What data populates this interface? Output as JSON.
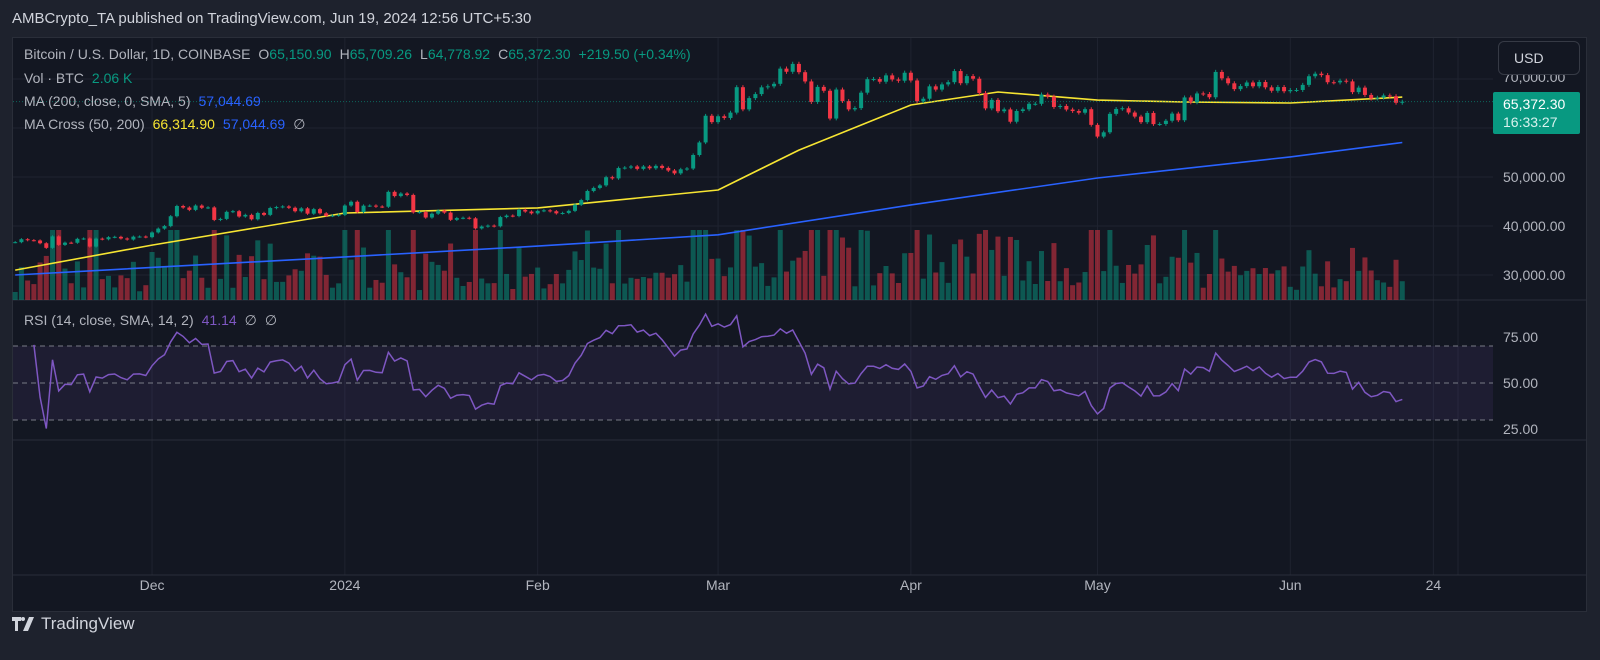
{
  "header": {
    "published": "AMBCrypto_TA published on TradingView.com, Jun 19, 2024 12:56 UTC+5:30"
  },
  "legend": {
    "symbol": "Bitcoin / U.S. Dollar, 1D, COINBASE",
    "o_label": "O",
    "o": "65,150.90",
    "h_label": "H",
    "h": "65,709.26",
    "l_label": "L",
    "l": "64,778.92",
    "c_label": "C",
    "c": "65,372.30",
    "change": "+219.50 (+0.34%)",
    "vol_label": "Vol · BTC",
    "vol": "2.06 K",
    "ma_label": "MA (200, close, 0, SMA, 5)",
    "ma": "57,044.69",
    "cross_label": "MA Cross (50, 200)",
    "cross_fast": "66,314.90",
    "cross_slow": "57,044.69",
    "cross_extra": "∅",
    "rsi_label": "RSI (14, close, SMA, 14, 2)",
    "rsi": "41.14",
    "rsi_extra1": "∅",
    "rsi_extra2": "∅"
  },
  "price_axis": {
    "currency_button": "USD",
    "ticks": [
      "70,000.00",
      "50,000.00",
      "40,000.00",
      "30,000.00"
    ],
    "last_price": "65,372.30",
    "countdown": "16:33:27"
  },
  "rsi_axis": {
    "ticks": [
      "75.00",
      "50.00",
      "25.00"
    ]
  },
  "time_axis": {
    "ticks": [
      "Dec",
      "2024",
      "Feb",
      "Mar",
      "Apr",
      "May",
      "Jun",
      "24"
    ]
  },
  "branding": {
    "logo_text": "TradingView"
  },
  "colors": {
    "up": "#089981",
    "down": "#f23645",
    "ma200": "#2962ff",
    "ma50": "#f7e532",
    "rsi": "#7e57c2",
    "background": "#131722"
  },
  "chart_data": {
    "type": "candlestick",
    "start_date": "2023-11-09",
    "interval": "1D",
    "ylim": [
      23000,
      78000
    ],
    "yticks": [
      30000,
      40000,
      50000,
      70000
    ],
    "close": [
      36700,
      37300,
      37100,
      37050,
      36480,
      35540,
      37880,
      36150,
      36600,
      36580,
      37380,
      37450,
      35800,
      37420,
      37290,
      37720,
      37790,
      37450,
      37240,
      37830,
      37850,
      37720,
      38690,
      39470,
      39980,
      41990,
      44080,
      43770,
      43290,
      44170,
      43720,
      43790,
      41240,
      41450,
      42890,
      43020,
      41940,
      42270,
      41370,
      42660,
      42270,
      43670,
      43860,
      43990,
      43720,
      43010,
      43600,
      42520,
      43440,
      42590,
      42070,
      42140,
      42280,
      44180,
      44950,
      42850,
      44150,
      44160,
      43970,
      43930,
      46970,
      46110,
      46630,
      46340,
      42780,
      42840,
      41730,
      42510,
      43150,
      42740,
      41260,
      41620,
      41680,
      41560,
      39510,
      39890,
      40080,
      39940,
      41820,
      42120,
      42030,
      43300,
      42950,
      42580,
      43080,
      43190,
      43010,
      42580,
      42660,
      43090,
      44340,
      45290,
      47150,
      47770,
      48290,
      49960,
      49720,
      51830,
      51920,
      52150,
      51660,
      52140,
      51780,
      52270,
      51850,
      51320,
      50740,
      51570,
      51730,
      54490,
      57050,
      62500,
      61200,
      62400,
      62050,
      63140,
      68330,
      63800,
      66100,
      66920,
      68300,
      68500,
      69020,
      72120,
      71480,
      73080,
      71390,
      69500,
      65300,
      68390,
      67600,
      61930,
      67850,
      65500,
      63800,
      64060,
      67210,
      69960,
      69990,
      69450,
      70740,
      69900,
      69650,
      71280,
      69700,
      65450,
      65980,
      68500,
      67840,
      68900,
      69350,
      71620,
      69140,
      70590,
      70060,
      67150,
      64000,
      65740,
      63420,
      63790,
      61280,
      63470,
      63810,
      64940,
      64940,
      66840,
      66410,
      64280,
      64500,
      63770,
      63460,
      63120,
      63840,
      60640,
      58250,
      59120,
      62890,
      63890,
      64030,
      63160,
      62330,
      61190,
      63070,
      60790,
      60820,
      61480,
      62940,
      61580,
      66240,
      65230,
      67050,
      66940,
      66270,
      71440,
      70140,
      69120,
      67930,
      68550,
      69290,
      68510,
      69390,
      68300,
      67600,
      68360,
      67500,
      67750,
      67760,
      68800,
      70560,
      71080,
      70790,
      69340,
      69310,
      69650,
      69510,
      67320,
      68240,
      66750,
      66010,
      66190,
      66640,
      66490,
      65150,
      65372.3
    ],
    "ma50": [
      [
        "2023-11-09",
        31000
      ],
      [
        "2023-12-01",
        36100
      ],
      [
        "2024-01-01",
        42650
      ],
      [
        "2024-02-01",
        43700
      ],
      [
        "2024-03-01",
        47350
      ],
      [
        "2024-03-14",
        55500
      ],
      [
        "2024-04-01",
        64700
      ],
      [
        "2024-04-15",
        67350
      ],
      [
        "2024-05-01",
        65700
      ],
      [
        "2024-05-15",
        65300
      ],
      [
        "2024-06-01",
        65100
      ],
      [
        "2024-06-19",
        66315
      ]
    ],
    "ma200": [
      [
        "2023-11-09",
        30000
      ],
      [
        "2024-01-01",
        33700
      ],
      [
        "2024-02-01",
        35900
      ],
      [
        "2024-03-01",
        38200
      ],
      [
        "2024-04-01",
        44300
      ],
      [
        "2024-05-01",
        49800
      ],
      [
        "2024-06-01",
        54100
      ],
      [
        "2024-06-19",
        57045
      ]
    ],
    "rsi": {
      "period": 14,
      "bands": [
        70,
        50,
        30
      ],
      "ylim": [
        16,
        95
      ],
      "last": 41.14
    },
    "xticks": [
      [
        "Dec",
        "2023-12-01"
      ],
      [
        "2024",
        "2024-01-01"
      ],
      [
        "Feb",
        "2024-02-01"
      ],
      [
        "Mar",
        "2024-03-01"
      ],
      [
        "Apr",
        "2024-04-01"
      ],
      [
        "May",
        "2024-05-01"
      ],
      [
        "Jun",
        "2024-06-01"
      ],
      [
        "24",
        "2024-06-24"
      ]
    ]
  }
}
